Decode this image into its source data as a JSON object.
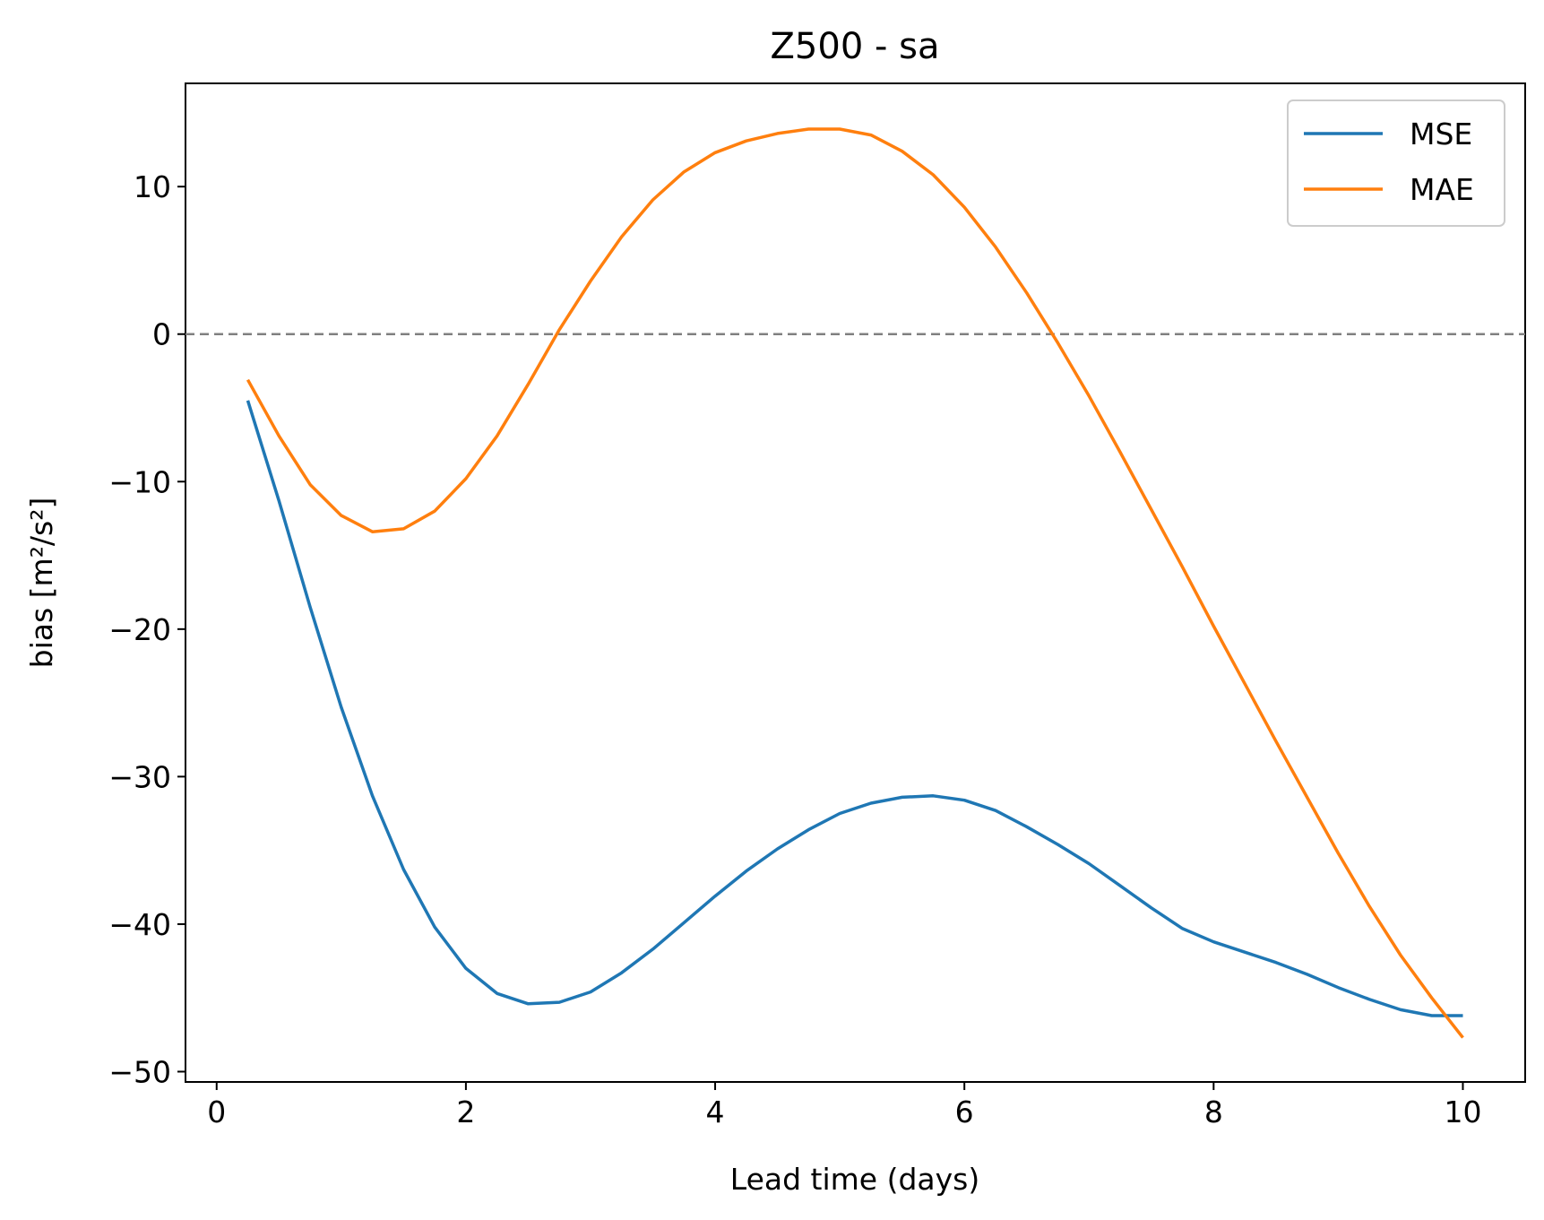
{
  "chart_data": {
    "type": "line",
    "title": "Z500 - sa",
    "xlabel": "Lead time (days)",
    "ylabel": "bias [m²/s²]",
    "xlim": [
      -0.25,
      10.5
    ],
    "ylim": [
      -50.7,
      17
    ],
    "xticks": [
      0,
      2,
      4,
      6,
      8,
      10
    ],
    "xtick_labels": [
      "0",
      "2",
      "4",
      "6",
      "8",
      "10"
    ],
    "yticks": [
      10,
      0,
      -10,
      -20,
      -30,
      -40,
      -50
    ],
    "ytick_labels": [
      "10",
      "0",
      "−10",
      "−20",
      "−30",
      "−40",
      "−50"
    ],
    "grid": false,
    "legend_position": "upper right",
    "reference_line": {
      "y": 0,
      "style": "dashed",
      "color": "#808080"
    },
    "x": [
      0.25,
      0.5,
      0.75,
      1.0,
      1.25,
      1.5,
      1.75,
      2.0,
      2.25,
      2.5,
      2.75,
      3.0,
      3.25,
      3.5,
      3.75,
      4.0,
      4.25,
      4.5,
      4.75,
      5.0,
      5.25,
      5.5,
      5.75,
      6.0,
      6.25,
      6.5,
      6.75,
      7.0,
      7.25,
      7.5,
      7.75,
      8.0,
      8.25,
      8.5,
      8.75,
      9.0,
      9.25,
      9.5,
      9.75,
      10.0
    ],
    "series": [
      {
        "name": "MSE",
        "color": "#1f77b4",
        "values": [
          -4.5,
          -11.3,
          -18.5,
          -25.3,
          -31.3,
          -36.3,
          -40.2,
          -43.0,
          -44.7,
          -45.4,
          -45.3,
          -44.6,
          -43.3,
          -41.7,
          -39.9,
          -38.1,
          -36.4,
          -34.9,
          -33.6,
          -32.5,
          -31.8,
          -31.4,
          -31.3,
          -31.6,
          -32.3,
          -33.4,
          -34.6,
          -35.9,
          -37.4,
          -38.9,
          -40.3,
          -41.2,
          -41.9,
          -42.6,
          -43.4,
          -44.3,
          -45.1,
          -45.8,
          -46.2,
          -46.2
        ]
      },
      {
        "name": "MAE",
        "color": "#ff7f0e",
        "values": [
          -3.1,
          -6.9,
          -10.2,
          -12.3,
          -13.4,
          -13.2,
          -12.0,
          -9.8,
          -6.9,
          -3.4,
          0.3,
          3.6,
          6.6,
          9.1,
          11.0,
          12.3,
          13.1,
          13.6,
          13.9,
          13.9,
          13.5,
          12.4,
          10.8,
          8.6,
          5.9,
          2.8,
          -0.6,
          -4.2,
          -8.0,
          -11.9,
          -15.8,
          -19.8,
          -23.7,
          -27.6,
          -31.4,
          -35.2,
          -38.8,
          -42.1,
          -45.0,
          -47.7
        ]
      }
    ]
  }
}
